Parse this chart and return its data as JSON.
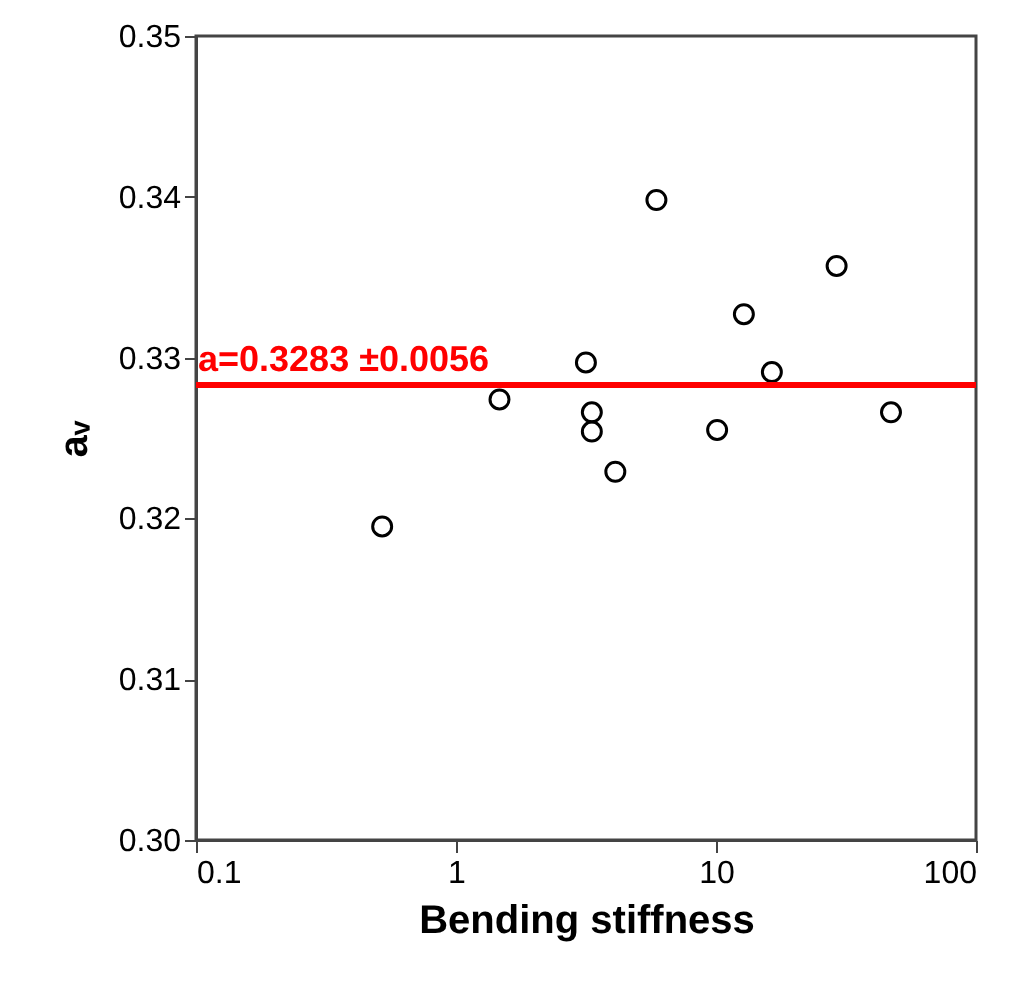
{
  "chart_data": {
    "type": "scatter",
    "xlabel": "Bending stiffness",
    "ylabel": "aᵥ",
    "x": [
      0.52,
      1.47,
      3.16,
      3.33,
      3.33,
      4.1,
      5.9,
      10.1,
      12.8,
      16.4,
      29.1,
      47.1
    ],
    "series": [
      {
        "color": "#000000",
        "values": [
          0.3195,
          0.3274,
          0.3297,
          0.3266,
          0.3254,
          0.3229,
          0.3398,
          0.3255,
          0.3327,
          0.3291,
          0.3357,
          0.3266
        ]
      }
    ],
    "marker": "circle",
    "log": "x",
    "xlim": [
      0.1,
      100
    ],
    "xticks": [
      0.1,
      1,
      10,
      100
    ],
    "ylim": [
      0.3,
      0.35
    ],
    "yticks": [
      {
        "value": 0.3,
        "label": "0.30"
      },
      0.31,
      0.32,
      0.33,
      0.34,
      0.35
    ],
    "ref_lines": [
      {
        "axis": "y",
        "value": 0.3283,
        "label": "a=0.3283 ±0.0056",
        "color": "#ff0000",
        "line_style": "solid"
      }
    ]
  }
}
